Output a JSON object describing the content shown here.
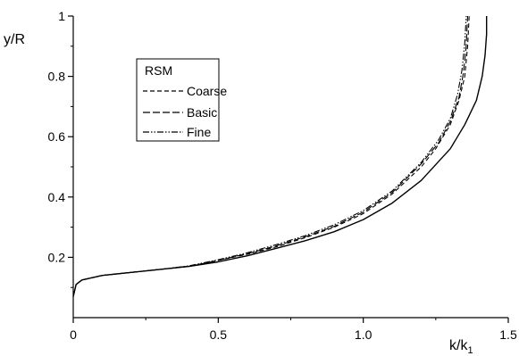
{
  "chart_data": {
    "type": "line",
    "xlabel": "k/k",
    "xlabel_subscript": "1",
    "ylabel": "y/R",
    "xlim": [
      0,
      1.5
    ],
    "ylim": [
      0,
      1
    ],
    "xticks": [
      0,
      0.5,
      1.0,
      1.5
    ],
    "xtick_labels": [
      "0",
      "0.5",
      "1.0",
      "1.5"
    ],
    "yticks": [
      0.2,
      0.4,
      0.6,
      0.8,
      1
    ],
    "ytick_labels": [
      "0.2",
      "0.4",
      "0.6",
      "0.8",
      "1"
    ],
    "grid": false,
    "legend": {
      "title": "RSM",
      "placement": "top-left",
      "entries": [
        "Coarse",
        "Basic",
        "Fine"
      ]
    },
    "series": [
      {
        "name": "",
        "style": "solid",
        "x": [
          0.0,
          0.01,
          0.03,
          0.1,
          0.2,
          0.3,
          0.4,
          0.5,
          0.6,
          0.7,
          0.8,
          0.9,
          1.0,
          1.1,
          1.2,
          1.3,
          1.35,
          1.39,
          1.41,
          1.42,
          1.425,
          1.425
        ],
        "y": [
          0.07,
          0.11,
          0.125,
          0.14,
          0.15,
          0.16,
          0.17,
          0.185,
          0.205,
          0.23,
          0.255,
          0.285,
          0.325,
          0.38,
          0.455,
          0.56,
          0.64,
          0.72,
          0.8,
          0.87,
          0.94,
          1.0
        ]
      },
      {
        "name": "Coarse",
        "style": "dashed",
        "x": [
          0.0,
          0.01,
          0.03,
          0.1,
          0.2,
          0.3,
          0.4,
          0.5,
          0.6,
          0.7,
          0.8,
          0.9,
          1.0,
          1.1,
          1.2,
          1.25,
          1.3,
          1.33,
          1.35,
          1.36,
          1.365
        ],
        "y": [
          0.07,
          0.11,
          0.125,
          0.14,
          0.15,
          0.16,
          0.17,
          0.19,
          0.21,
          0.235,
          0.265,
          0.3,
          0.345,
          0.41,
          0.5,
          0.56,
          0.64,
          0.72,
          0.8,
          0.9,
          1.0
        ]
      },
      {
        "name": "Basic",
        "style": "dashed-long",
        "x": [
          0.0,
          0.01,
          0.03,
          0.1,
          0.2,
          0.3,
          0.4,
          0.5,
          0.6,
          0.7,
          0.8,
          0.9,
          1.0,
          1.1,
          1.2,
          1.26,
          1.3,
          1.33,
          1.345,
          1.355,
          1.36
        ],
        "y": [
          0.07,
          0.11,
          0.125,
          0.14,
          0.15,
          0.16,
          0.17,
          0.19,
          0.212,
          0.238,
          0.268,
          0.303,
          0.35,
          0.415,
          0.51,
          0.58,
          0.65,
          0.73,
          0.81,
          0.9,
          1.0
        ]
      },
      {
        "name": "Fine",
        "style": "dash-dot-dot",
        "x": [
          0.0,
          0.01,
          0.03,
          0.1,
          0.2,
          0.3,
          0.4,
          0.5,
          0.6,
          0.7,
          0.8,
          0.9,
          1.0,
          1.1,
          1.2,
          1.26,
          1.3,
          1.325,
          1.34,
          1.35,
          1.355
        ],
        "y": [
          0.07,
          0.11,
          0.125,
          0.14,
          0.15,
          0.16,
          0.172,
          0.192,
          0.215,
          0.242,
          0.272,
          0.308,
          0.355,
          0.42,
          0.515,
          0.59,
          0.66,
          0.74,
          0.82,
          0.91,
          1.0
        ]
      }
    ]
  }
}
